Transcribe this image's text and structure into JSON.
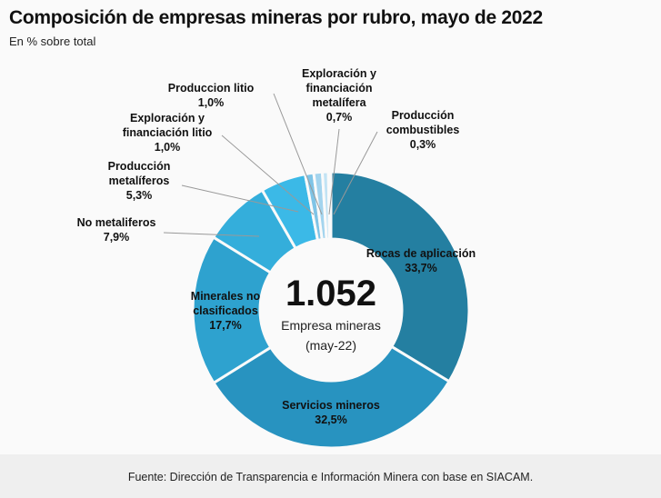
{
  "chart_data": {
    "type": "pie",
    "variant": "donut",
    "title": "Composición de empresas mineras por rubro, mayo de 2022",
    "subtitle": "En % sobre total",
    "center": {
      "value": "1.052",
      "label": "Empresa mineras",
      "sublabel": "(may-22)"
    },
    "slices": [
      {
        "name": "Rocas de aplicación",
        "value": 33.7,
        "label": "33,7%",
        "color": "#247fa1"
      },
      {
        "name": "Servicios mineros",
        "value": 32.5,
        "label": "32,5%",
        "color": "#2893c0"
      },
      {
        "name": "Minerales no clasificados",
        "value": 17.7,
        "label": "17,7%",
        "color": "#2ea2cf"
      },
      {
        "name": "No metaliferos",
        "value": 7.9,
        "label": "7,9%",
        "color": "#34aedb"
      },
      {
        "name": "Producción metalíferos",
        "value": 5.3,
        "label": "5,3%",
        "color": "#3bb9e7"
      },
      {
        "name": "Exploración y financiación litio",
        "value": 1.0,
        "label": "1,0%",
        "color": "#7fc4e6"
      },
      {
        "name": "Produccion litio",
        "value": 1.0,
        "label": "1,0%",
        "color": "#a3d4ee"
      },
      {
        "name": "Exploración y financiación metalífera",
        "value": 0.7,
        "label": "0,7%",
        "color": "#c2e3f4"
      },
      {
        "name": "Producción combustibles",
        "value": 0.3,
        "label": "0,3%",
        "color": "#dceef8"
      }
    ],
    "source": "Fuente: Dirección de Transparencia e Información Minera con base en SIACAM."
  }
}
